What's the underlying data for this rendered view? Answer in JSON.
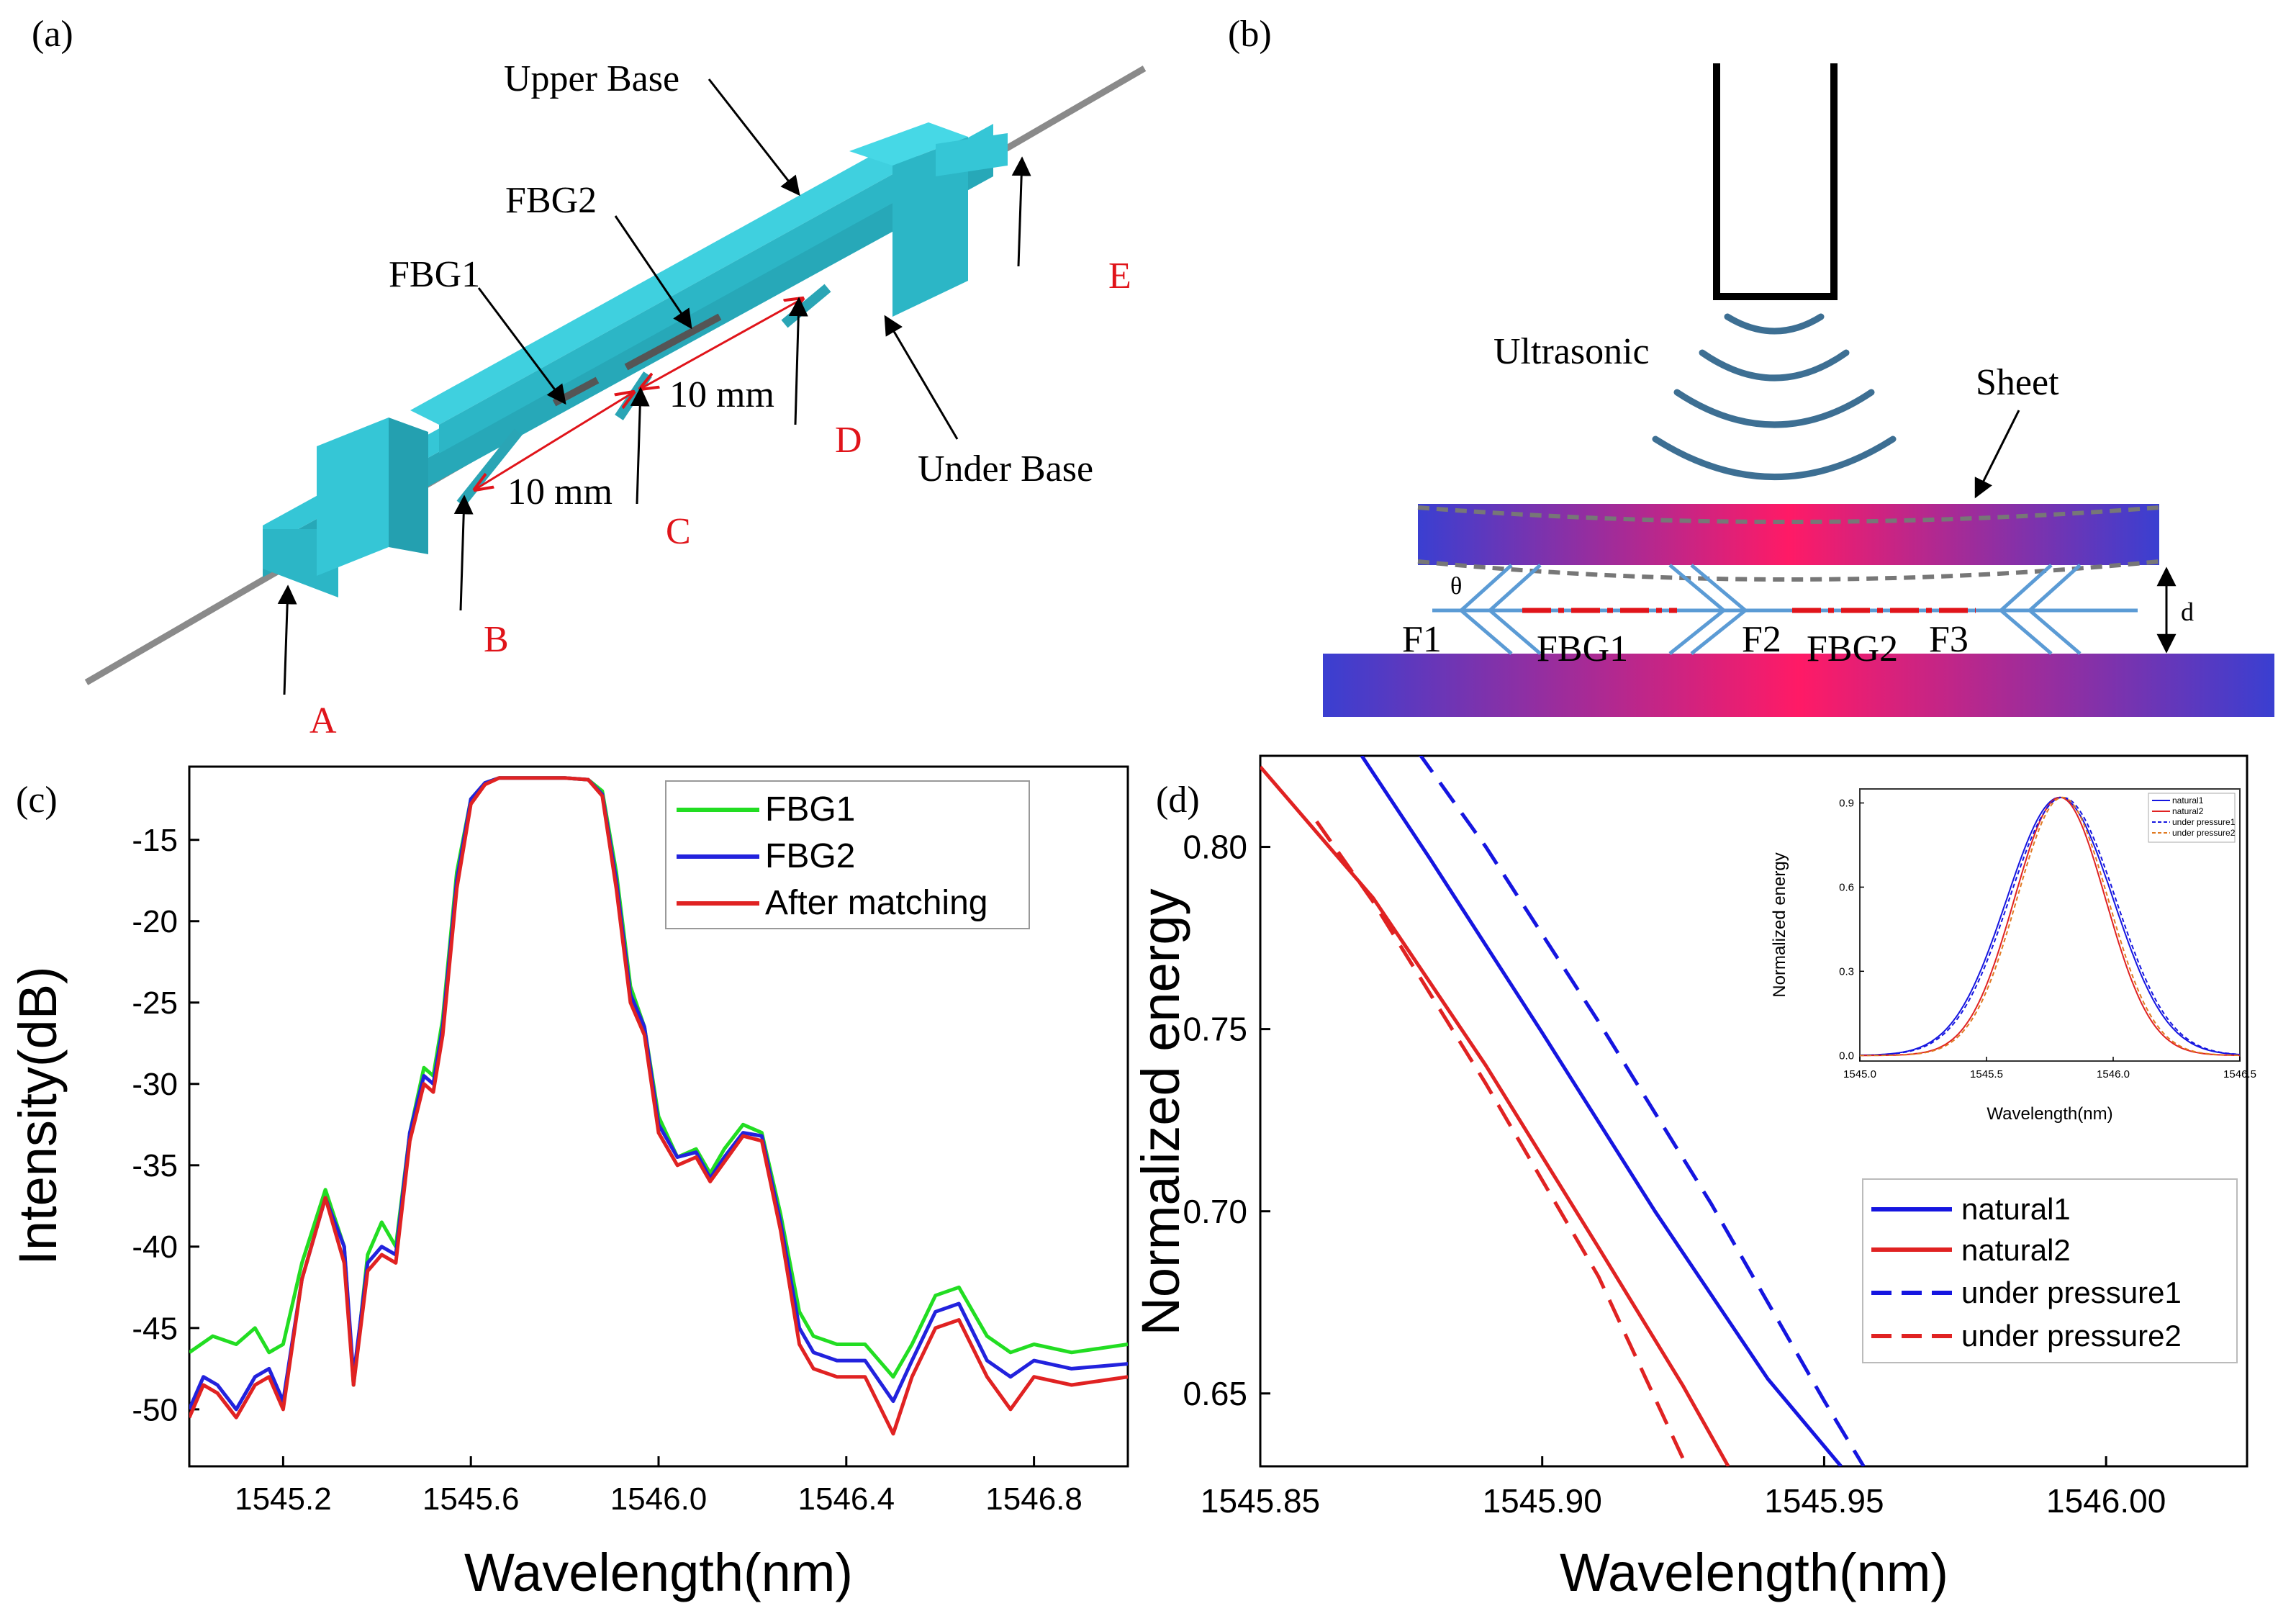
{
  "panel_a": {
    "label": "(a)",
    "upper_base": "Upper Base",
    "fbg1": "FBG1",
    "fbg2": "FBG2",
    "dim1": "10 mm",
    "dim2": "10 mm",
    "under_base": "Under Base",
    "point_a": "A",
    "point_b": "B",
    "point_c": "C",
    "point_d": "D",
    "point_e": "E",
    "colors": {
      "body": "#35c6d6",
      "point_label": "#e0141a",
      "dim_arrow": "#e0141a"
    }
  },
  "panel_b": {
    "label": "(b)",
    "ultrasonic": "Ultrasonic",
    "sheet": "Sheet",
    "theta": "θ",
    "d": "d",
    "f1": "F1",
    "fbg1": "FBG1",
    "f2": "F2",
    "fbg2": "FBG2",
    "f3": "F3",
    "colors": {
      "wave": "#3d6f93",
      "fiber": "#5b9bd5",
      "grating": "#e0141a",
      "gradient_edge": "#3a3fd1",
      "gradient_center": "#ff1a66"
    }
  },
  "chart_data": [
    {
      "panel": "(c)",
      "type": "line",
      "xlabel": "Wavelength(nm)",
      "ylabel": "Intensity(dB)",
      "xlim": [
        1545.0,
        1547.0
      ],
      "ylim": [
        -53.5,
        -10.5
      ],
      "xticks": [
        1545.2,
        1545.6,
        1546.0,
        1546.4,
        1546.8
      ],
      "xtick_labels": [
        "1545.2",
        "1545.6",
        "1546.0",
        "1546.4",
        "1546.8"
      ],
      "yticks": [
        -15,
        -20,
        -25,
        -30,
        -35,
        -40,
        -45,
        -50
      ],
      "ytick_labels": [
        "-15",
        "-20",
        "-25",
        "-30",
        "-35",
        "-40",
        "-45",
        "-50"
      ],
      "legend": "top-right",
      "series": [
        {
          "name": "FBG1",
          "color": "#22dd22",
          "x": [
            1545.0,
            1545.05,
            1545.1,
            1545.14,
            1545.17,
            1545.2,
            1545.24,
            1545.29,
            1545.33,
            1545.35,
            1545.38,
            1545.41,
            1545.44,
            1545.47,
            1545.5,
            1545.52,
            1545.54,
            1545.57,
            1545.6,
            1545.63,
            1545.66,
            1545.7,
            1545.75,
            1545.8,
            1545.85,
            1545.88,
            1545.91,
            1545.94,
            1545.97,
            1546.0,
            1546.04,
            1546.08,
            1546.11,
            1546.14,
            1546.18,
            1546.22,
            1546.26,
            1546.3,
            1546.33,
            1546.38,
            1546.44,
            1546.5,
            1546.54,
            1546.59,
            1546.64,
            1546.7,
            1546.75,
            1546.8,
            1546.88,
            1547.0
          ],
          "y": [
            -46.5,
            -45.5,
            -46.0,
            -45.0,
            -46.5,
            -46.0,
            -41.0,
            -36.5,
            -40.0,
            -48.5,
            -40.5,
            -38.5,
            -40.0,
            -33.0,
            -29.0,
            -29.5,
            -26.0,
            -17.0,
            -12.5,
            -11.5,
            -11.2,
            -11.2,
            -11.2,
            -11.2,
            -11.3,
            -12.0,
            -17.0,
            -24.0,
            -26.5,
            -32.0,
            -34.5,
            -34.0,
            -35.5,
            -34.0,
            -32.5,
            -33.0,
            -38.0,
            -44.0,
            -45.5,
            -46.0,
            -46.0,
            -48.0,
            -46.0,
            -43.0,
            -42.5,
            -45.5,
            -46.5,
            -46.0,
            -46.5,
            -46.0
          ]
        },
        {
          "name": "FBG2",
          "color": "#2222dd",
          "x": [
            1545.0,
            1545.03,
            1545.06,
            1545.1,
            1545.14,
            1545.17,
            1545.2,
            1545.24,
            1545.29,
            1545.33,
            1545.35,
            1545.38,
            1545.41,
            1545.44,
            1545.47,
            1545.5,
            1545.52,
            1545.54,
            1545.57,
            1545.6,
            1545.63,
            1545.66,
            1545.7,
            1545.75,
            1545.8,
            1545.85,
            1545.88,
            1545.91,
            1545.94,
            1545.97,
            1546.0,
            1546.04,
            1546.08,
            1546.11,
            1546.14,
            1546.18,
            1546.22,
            1546.26,
            1546.3,
            1546.33,
            1546.38,
            1546.44,
            1546.5,
            1546.54,
            1546.59,
            1546.64,
            1546.7,
            1546.75,
            1546.8,
            1546.88,
            1547.0
          ],
          "y": [
            -50.0,
            -48.0,
            -48.5,
            -50.0,
            -48.0,
            -47.5,
            -49.5,
            -42.0,
            -37.0,
            -40.0,
            -48.0,
            -41.0,
            -40.0,
            -40.5,
            -33.0,
            -29.5,
            -30.0,
            -26.5,
            -17.5,
            -12.5,
            -11.5,
            -11.2,
            -11.2,
            -11.2,
            -11.2,
            -11.3,
            -12.2,
            -17.5,
            -24.5,
            -26.5,
            -32.5,
            -34.5,
            -34.2,
            -35.8,
            -34.5,
            -33.0,
            -33.2,
            -38.5,
            -45.0,
            -46.5,
            -47.0,
            -47.0,
            -49.5,
            -47.0,
            -44.0,
            -43.5,
            -47.0,
            -48.0,
            -47.0,
            -47.5,
            -47.2
          ]
        },
        {
          "name": "After matching",
          "color": "#e02222",
          "x": [
            1545.0,
            1545.03,
            1545.06,
            1545.1,
            1545.14,
            1545.17,
            1545.2,
            1545.24,
            1545.29,
            1545.33,
            1545.35,
            1545.38,
            1545.41,
            1545.44,
            1545.47,
            1545.5,
            1545.52,
            1545.54,
            1545.57,
            1545.6,
            1545.63,
            1545.66,
            1545.7,
            1545.75,
            1545.8,
            1545.85,
            1545.88,
            1545.91,
            1545.94,
            1545.97,
            1546.0,
            1546.04,
            1546.08,
            1546.11,
            1546.14,
            1546.18,
            1546.22,
            1546.26,
            1546.3,
            1546.33,
            1546.38,
            1546.44,
            1546.5,
            1546.54,
            1546.59,
            1546.64,
            1546.7,
            1546.75,
            1546.8,
            1546.88,
            1547.0
          ],
          "y": [
            -50.5,
            -48.5,
            -49.0,
            -50.5,
            -48.5,
            -48.0,
            -50.0,
            -42.0,
            -37.0,
            -41.0,
            -48.5,
            -41.5,
            -40.5,
            -41.0,
            -33.5,
            -30.0,
            -30.5,
            -27.0,
            -18.0,
            -12.8,
            -11.6,
            -11.2,
            -11.2,
            -11.2,
            -11.2,
            -11.3,
            -12.3,
            -18.0,
            -25.0,
            -27.0,
            -33.0,
            -35.0,
            -34.5,
            -36.0,
            -34.8,
            -33.2,
            -33.5,
            -39.0,
            -46.0,
            -47.5,
            -48.0,
            -48.0,
            -51.5,
            -48.0,
            -45.0,
            -44.5,
            -48.0,
            -50.0,
            -48.0,
            -48.5,
            -48.0
          ]
        }
      ]
    },
    {
      "panel": "(d)",
      "type": "line",
      "xlabel": "Wavelength(nm)",
      "ylabel": "Normalized energy",
      "xlim": [
        1545.85,
        1546.025
      ],
      "ylim": [
        0.63,
        0.825
      ],
      "xticks": [
        1545.85,
        1545.9,
        1545.95,
        1546.0
      ],
      "xtick_labels": [
        "1545.85",
        "1545.90",
        "1545.95",
        "1546.00"
      ],
      "yticks": [
        0.8,
        0.75,
        0.7,
        0.65
      ],
      "ytick_labels": [
        "0.80",
        "0.75",
        "0.70",
        "0.65"
      ],
      "legend": "bottom-right",
      "series": [
        {
          "name": "natural1",
          "color": "#1515e0",
          "dash": "solid",
          "x": [
            1545.868,
            1545.88,
            1545.9,
            1545.92,
            1545.94,
            1545.953
          ],
          "y": [
            0.825,
            0.797,
            0.749,
            0.7,
            0.654,
            0.63
          ]
        },
        {
          "name": "natural2",
          "color": "#e02222",
          "dash": "solid",
          "x": [
            1545.85,
            1545.87,
            1545.89,
            1545.91,
            1545.925,
            1545.933
          ],
          "y": [
            0.822,
            0.786,
            0.74,
            0.69,
            0.652,
            0.63
          ]
        },
        {
          "name": "under pressure1",
          "color": "#1515e0",
          "dash": "dashed",
          "x": [
            1545.878,
            1545.89,
            1545.91,
            1545.93,
            1545.95,
            1545.957
          ],
          "y": [
            0.826,
            0.8,
            0.752,
            0.702,
            0.648,
            0.63
          ]
        },
        {
          "name": "under pressure2",
          "color": "#e02222",
          "dash": "dashed",
          "x": [
            1545.86,
            1545.87,
            1545.89,
            1545.91,
            1545.925
          ],
          "y": [
            0.807,
            0.785,
            0.735,
            0.682,
            0.632
          ]
        }
      ]
    },
    {
      "panel": "(d) inset",
      "type": "line",
      "xlabel": "Wavelength(nm)",
      "ylabel": "Normalized energy",
      "xlim": [
        1545.0,
        1546.5
      ],
      "ylim": [
        -0.02,
        0.95
      ],
      "xticks": [
        1545.0,
        1545.5,
        1546.0,
        1546.5
      ],
      "xtick_labels": [
        "1545.0",
        "1545.5",
        "1546.0",
        "1546.5"
      ],
      "yticks": [
        0.0,
        0.3,
        0.6,
        0.9
      ],
      "ytick_labels": [
        "0.0",
        "0.3",
        "0.6",
        "0.9"
      ],
      "legend": "top-right",
      "series": [
        {
          "name": "natural1",
          "color": "#1515e0",
          "dash": "solid",
          "peak": 0.92,
          "center": 1545.79,
          "sigma": 0.21
        },
        {
          "name": "natural2",
          "color": "#e02222",
          "dash": "solid",
          "peak": 0.92,
          "center": 1545.79,
          "sigma": 0.18
        },
        {
          "name": "under pressure1",
          "color": "#1515e0",
          "dash": "dashed",
          "peak": 0.92,
          "center": 1545.8,
          "sigma": 0.21
        },
        {
          "name": "under pressure2",
          "color": "#e07a22",
          "dash": "dashed",
          "peak": 0.92,
          "center": 1545.8,
          "sigma": 0.18
        }
      ]
    }
  ]
}
